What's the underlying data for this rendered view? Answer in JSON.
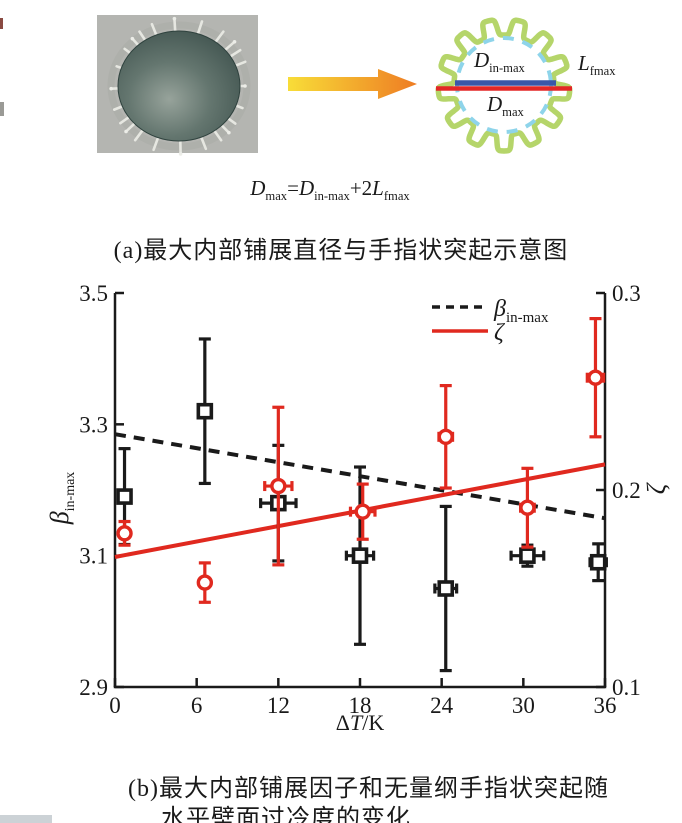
{
  "schematic": {
    "labels": {
      "d_in": {
        "main": "D",
        "sub": "in-max"
      },
      "d_max": {
        "main": "D",
        "sub": "max"
      },
      "l_fmax": {
        "main": "L",
        "sub": "fmax"
      }
    },
    "colors": {
      "gear": "#b5d56a",
      "inner_dashed": "#8ed4ea",
      "blue_line": "#3a57a8",
      "red_line": "#e32726",
      "arrow_start": "#f8dd38",
      "arrow_end": "#ee7c23"
    }
  },
  "equation": {
    "lhs_main": "D",
    "lhs_sub": "max",
    "equals": "=",
    "rhs1_main": "D",
    "rhs1_sub": "in-max",
    "plus": "+2",
    "rhs2_main": "L",
    "rhs2_sub": "fmax"
  },
  "captions": {
    "a": "(a)最大内部铺展直径与手指状突起示意图",
    "b_line1": "(b)最大内部铺展因子和无量纲手指状突起随",
    "b_line2": "水平壁面过冷度的变化"
  },
  "chart_data": {
    "type": "scatter",
    "dual_axis": true,
    "grid": false,
    "legend_position": "top-right",
    "x_axis": {
      "label_prefix": "Δ",
      "label_italic": "T",
      "label_suffix": "/K",
      "range": [
        0,
        36
      ],
      "ticks": [
        0,
        6,
        12,
        18,
        24,
        30,
        36
      ]
    },
    "y_axis_left": {
      "label_main": "β",
      "label_sub": "in-max",
      "range": [
        2.9,
        3.5
      ],
      "ticks": [
        2.9,
        3.1,
        3.3,
        3.5
      ]
    },
    "y_axis_right": {
      "label_main": "ζ",
      "label_sub": "",
      "range": [
        0.1,
        0.3
      ],
      "ticks": [
        0.1,
        0.2,
        0.3
      ]
    },
    "series": [
      {
        "id": "beta-in-max",
        "legend_main": "β",
        "legend_sub": "in-max",
        "axis": "left",
        "marker": "open-square",
        "color": "#1a1a1a",
        "trend_style": "dashed",
        "trend": {
          "x": [
            0,
            36
          ],
          "y": [
            3.285,
            3.157
          ]
        },
        "points": [
          {
            "x": 0.7,
            "y": 3.19,
            "y_err": 0.073,
            "x_err": 0.3
          },
          {
            "x": 6.6,
            "y": 3.32,
            "y_err": 0.11,
            "x_err": 0.4
          },
          {
            "x": 12.0,
            "y": 3.18,
            "y_err": 0.088,
            "x_err": 1.3
          },
          {
            "x": 18.0,
            "y": 3.1,
            "y_err": 0.135,
            "x_err": 1.0
          },
          {
            "x": 24.3,
            "y": 3.05,
            "y_err": 0.125,
            "x_err": 0.8
          },
          {
            "x": 30.3,
            "y": 3.1,
            "y_err": 0.016,
            "x_err": 1.2
          },
          {
            "x": 35.5,
            "y": 3.09,
            "y_err": 0.028,
            "x_err": 0.6
          }
        ]
      },
      {
        "id": "zeta",
        "legend_main": "ζ",
        "legend_sub": "",
        "axis": "right",
        "marker": "open-circle",
        "color": "#e0291f",
        "trend_style": "solid",
        "trend": {
          "x": [
            0,
            36
          ],
          "y": [
            0.166,
            0.213
          ]
        },
        "points": [
          {
            "x": 0.7,
            "y": 0.178,
            "y_err": 0.006,
            "x_err": 0.3
          },
          {
            "x": 6.6,
            "y": 0.153,
            "y_err": 0.01,
            "x_err": 0.3
          },
          {
            "x": 12.0,
            "y": 0.202,
            "y_err": 0.04,
            "x_err": 1.0
          },
          {
            "x": 18.2,
            "y": 0.189,
            "y_err": 0.014,
            "x_err": 0.9
          },
          {
            "x": 24.3,
            "y": 0.227,
            "y_err": 0.026,
            "x_err": 0.5
          },
          {
            "x": 30.3,
            "y": 0.191,
            "y_err": 0.02,
            "x_err": 0.5
          },
          {
            "x": 35.3,
            "y": 0.257,
            "y_err": 0.03,
            "x_err": 0.6
          }
        ]
      }
    ]
  }
}
